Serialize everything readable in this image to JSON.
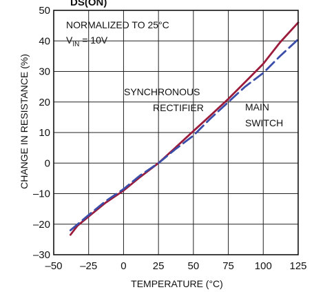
{
  "chart_data": {
    "type": "line",
    "title": "DS(ON)",
    "xlabel": "TEMPERATURE (°C)",
    "ylabel": "CHANGE IN RESISTANCE (%)",
    "xlim": [
      -50,
      125
    ],
    "ylim": [
      -30,
      50
    ],
    "x_ticks": [
      -50,
      -25,
      0,
      25,
      50,
      75,
      100,
      125
    ],
    "y_ticks": [
      -30,
      -20,
      -10,
      0,
      10,
      20,
      30,
      40,
      50
    ],
    "x_tick_labels": [
      "–50",
      "–25",
      "0",
      "25",
      "50",
      "75",
      "100",
      "125"
    ],
    "y_tick_labels": [
      "–30",
      "–20",
      "–10",
      "0",
      "10",
      "20",
      "30",
      "40",
      "50"
    ],
    "grid": true,
    "annotations": {
      "normalized": "NORMALIZED TO 25°C",
      "vin_prefix": "V",
      "vin_sub": "IN",
      "vin_suffix": " = 10V",
      "sync_line1": "SYNCHRONOUS",
      "sync_line2": "RECTIFIER",
      "main_line1": "MAIN",
      "main_line2": "SWITCH"
    },
    "series": [
      {
        "name": "SYNCHRONOUS RECTIFIER",
        "color": "#9b1b3b",
        "style": "solid",
        "x": [
          -38,
          -33,
          -25,
          -13,
          0,
          12,
          25,
          37,
          50,
          62,
          75,
          87,
          100,
          112,
          125
        ],
        "y": [
          -23.5,
          -20.5,
          -17.5,
          -13,
          -9,
          -4.5,
          0,
          5,
          10.5,
          15.5,
          21,
          26.5,
          32.5,
          39.5,
          46
        ]
      },
      {
        "name": "MAIN SWITCH",
        "color": "#3a4da8",
        "style": "dashed",
        "x": [
          -38,
          -25,
          -13,
          0,
          12,
          25,
          37,
          50,
          62,
          75,
          87,
          100,
          112,
          125
        ],
        "y": [
          -22,
          -17,
          -12.5,
          -8.5,
          -4,
          0,
          4.5,
          9,
          14.5,
          20,
          25,
          29.5,
          35,
          40.5
        ]
      }
    ]
  }
}
